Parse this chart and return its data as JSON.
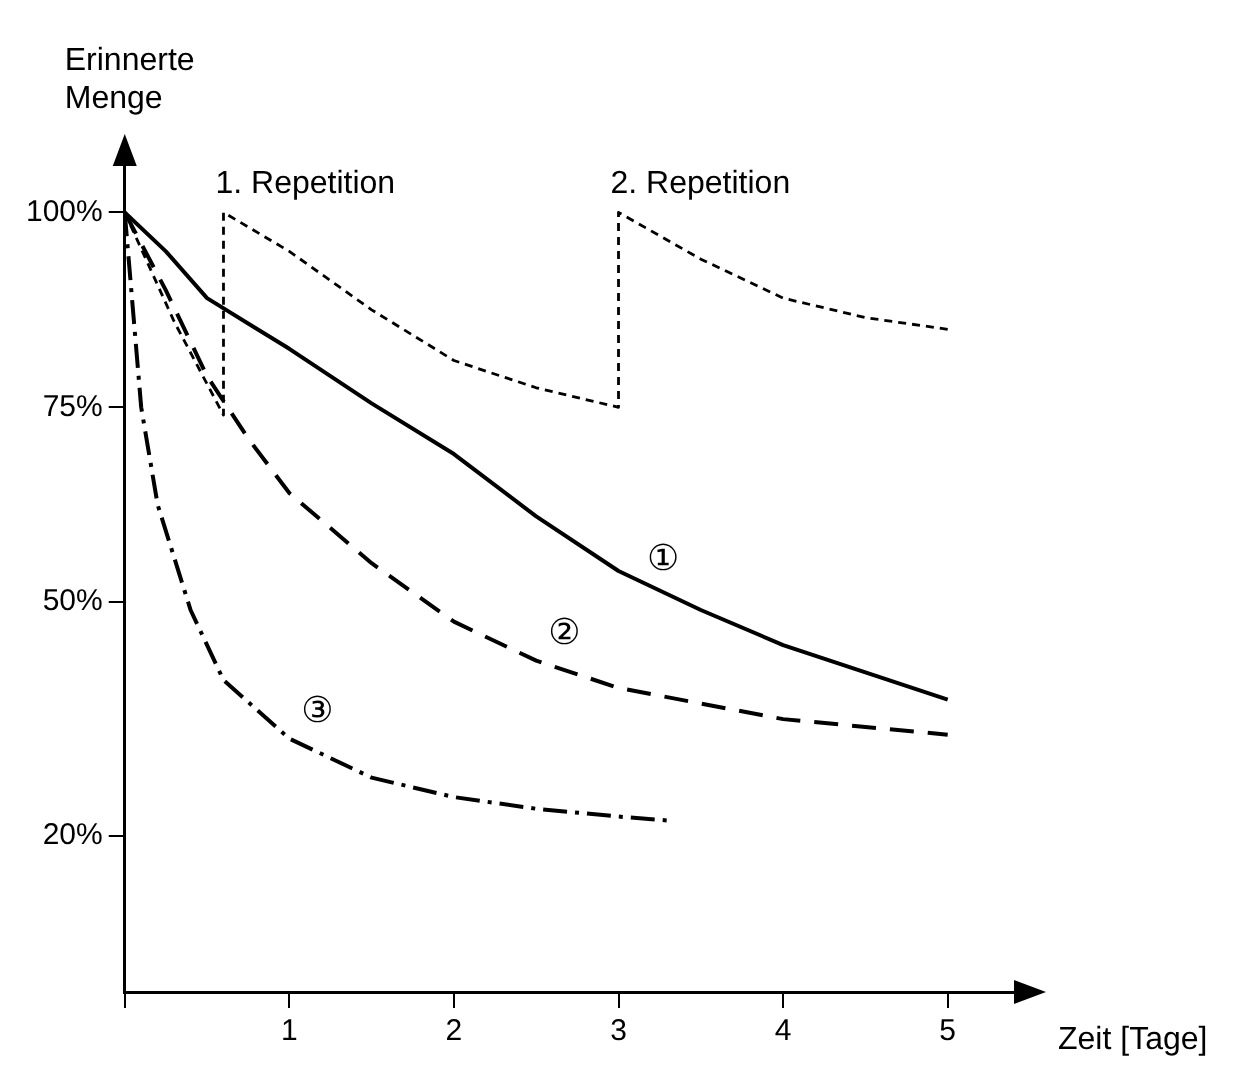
{
  "chart_data": {
    "type": "line",
    "xlabel": "Zeit [Tage]",
    "ylabel": "Erinnerte Menge",
    "xlim": [
      0,
      5.5
    ],
    "ylim": [
      0,
      108
    ],
    "xticks": [
      {
        "value": 0,
        "label": null
      },
      1,
      2,
      3,
      4,
      5
    ],
    "yticks": [
      {
        "value": 20,
        "label": "20%"
      },
      {
        "value": 50,
        "label": "50%"
      },
      {
        "value": 75,
        "label": "75%"
      },
      {
        "value": 100,
        "label": "100%"
      }
    ],
    "grid": false,
    "legend": false,
    "marker": "none",
    "series": [
      {
        "color": "#000000",
        "line_style": "solid",
        "x": [
          0,
          0.25,
          0.5,
          1,
          1.5,
          2,
          2.5,
          3,
          3.5,
          4,
          4.5,
          5
        ],
        "values": [
          100,
          95,
          89,
          82.5,
          75.5,
          69,
          61,
          54,
          49,
          44.5,
          41,
          37.5
        ]
      },
      {
        "color": "#000000",
        "line_style": "dashed",
        "x": [
          0,
          0.25,
          0.5,
          0.75,
          1,
          1.5,
          2,
          2.5,
          3,
          3.5,
          4,
          4.5,
          5
        ],
        "values": [
          100,
          90,
          79,
          71,
          64,
          55,
          47.5,
          42.5,
          39,
          37,
          35,
          34,
          33
        ]
      },
      {
        "color": "#000000",
        "line_style": "dashdot",
        "x": [
          0,
          0.1,
          0.2,
          0.4,
          0.6,
          1,
          1.5,
          2,
          2.5,
          3,
          3.3
        ],
        "values": [
          100,
          75,
          62.5,
          49,
          40,
          32.5,
          27.5,
          25,
          23.5,
          22.5,
          22
        ]
      },
      {
        "color": "#000000",
        "line_style": "dotted",
        "x": [
          0,
          0.3,
          0.6,
          0.6,
          1,
          1.5,
          2,
          2.5,
          3,
          3,
          3.5,
          4,
          4.5,
          5
        ],
        "values": [
          100,
          86,
          74,
          100,
          95,
          87.5,
          81,
          77.5,
          75,
          100,
          94,
          89,
          86.5,
          85
        ]
      }
    ],
    "annotations": [
      {
        "text": "①",
        "x": 3.1,
        "y": 52
      },
      {
        "text": "②",
        "x": 2.5,
        "y": 42.5
      },
      {
        "text": "③",
        "x": 1,
        "y": 32.5
      },
      {
        "text": "1. Repetition",
        "x": 0.6,
        "y": 100
      },
      {
        "text": "2. Repetition",
        "x": 3,
        "y": 100
      }
    ]
  }
}
